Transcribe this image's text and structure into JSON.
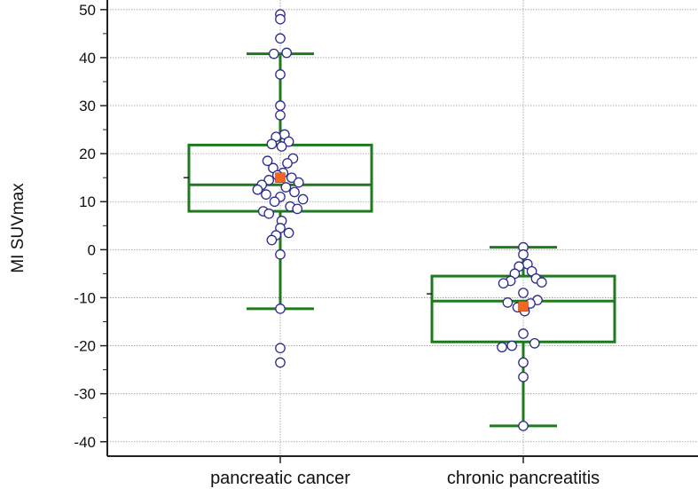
{
  "chart_data": {
    "type": "box",
    "title": "",
    "ylabel": "MI SUVmax",
    "xlabel": "",
    "ylim": [
      -43,
      52
    ],
    "yticks": [
      -40,
      -30,
      -20,
      -10,
      0,
      10,
      20,
      30,
      40,
      50
    ],
    "ytick_labels": [
      "-40",
      "-30",
      "-20",
      "-10",
      "0",
      "10",
      "20",
      "30",
      "40",
      "50"
    ],
    "grid": true,
    "categories": [
      "pancreatic cancer",
      "chronic pancreatitis"
    ],
    "colors": {
      "box": "#1f7a1f",
      "point_stroke": "#2b2b8c",
      "point_fill": "#ffffff",
      "mean": "#f26522",
      "grid": "#9a9a9a",
      "axis": "#222222"
    },
    "series": [
      {
        "name": "pancreatic cancer",
        "whisker_low": -12.3,
        "q1": 8.0,
        "median": 13.5,
        "q3": 21.8,
        "whisker_high": 40.8,
        "mean": 15.0,
        "points": [
          49,
          48,
          44,
          41,
          40.8,
          36.5,
          30,
          28,
          24,
          23.5,
          22.5,
          22,
          21.5,
          19,
          18.5,
          18,
          17,
          16,
          15.5,
          15,
          14.5,
          14,
          13.5,
          13,
          12.5,
          12,
          11.5,
          11,
          10.5,
          10,
          9,
          8.5,
          8,
          7.5,
          6,
          4.5,
          3.5,
          3,
          2,
          -1,
          -12.3,
          -20.5,
          -23.5
        ],
        "offsets": [
          0,
          0,
          0,
          0.45,
          -0.45,
          0,
          0,
          0,
          0.3,
          -0.3,
          0.6,
          -0.6,
          0.1,
          0.9,
          -0.9,
          0.5,
          -0.5,
          0.2,
          -0.2,
          0.8,
          -0.8,
          1.3,
          -1.3,
          0.4,
          -1.6,
          1.0,
          -1.0,
          0.0,
          1.6,
          -0.4,
          0.7,
          1.2,
          -1.2,
          -0.8,
          0.1,
          0.0,
          0.6,
          -0.3,
          -0.6,
          0.0,
          0.0,
          0.0,
          0.0
        ]
      },
      {
        "name": "chronic pancreatitis",
        "whisker_low": -36.7,
        "q1": -19.2,
        "median": -10.7,
        "q3": -5.5,
        "whisker_high": 0.5,
        "mean": -11.8,
        "points": [
          0.5,
          -1,
          -3,
          -3.5,
          -4.5,
          -5,
          -6,
          -6.5,
          -6.8,
          -7,
          -9,
          -10.5,
          -11,
          -11.2,
          -12,
          -12.8,
          -17.5,
          -19.5,
          -20,
          -20.3,
          -23.5,
          -26.5,
          -36.7
        ],
        "offsets": [
          0,
          0,
          0.3,
          -0.3,
          0.6,
          -0.6,
          0.9,
          -0.9,
          1.3,
          -1.4,
          0,
          1.0,
          -1.1,
          0.5,
          -0.4,
          0.1,
          0.0,
          0.8,
          -0.8,
          -1.5,
          0.0,
          0.0,
          0.0
        ]
      }
    ]
  }
}
